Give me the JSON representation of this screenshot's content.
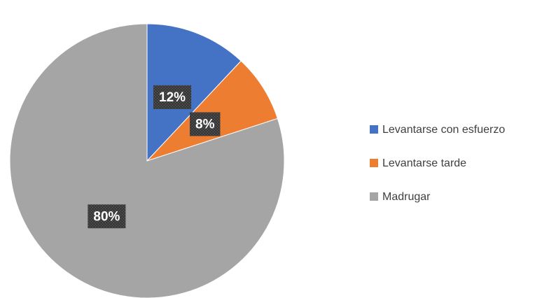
{
  "chart_data": {
    "type": "pie",
    "categories": [
      "Levantarse con esfuerzo",
      "Levantarse tarde",
      "Madrugar"
    ],
    "values": [
      12,
      8,
      80
    ],
    "value_labels": [
      "12%",
      "8%",
      "80%"
    ],
    "colors": [
      "#4472c4",
      "#ed7d31",
      "#a5a5a5"
    ],
    "legend": "right"
  }
}
